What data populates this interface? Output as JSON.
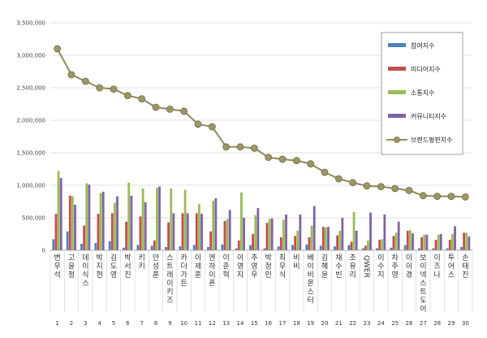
{
  "chart_data": {
    "type": "bar",
    "ylim": [
      0,
      3500000
    ],
    "yticks": [
      0,
      500000,
      1000000,
      1500000,
      2000000,
      2500000,
      3000000,
      3500000
    ],
    "ytick_labels": [
      "0",
      "500,000",
      "1,000,000",
      "1,500,000",
      "2,000,000",
      "2,500,000",
      "3,000,000",
      "3,500,000"
    ],
    "grid": true,
    "legend_position": "top-right",
    "categories": [
      "변우석",
      "고윤정",
      "데이식스",
      "박지현",
      "김도영",
      "박서진",
      "키키",
      "안성훈",
      "스트레이키즈",
      "카더가든",
      "이제훈",
      "엔하이픈",
      "이준혁",
      "이영지",
      "추영우",
      "박정민",
      "최우식",
      "비비",
      "베이비몬스터",
      "김혜윤",
      "채수빈",
      "조유리",
      "QWER",
      "이수지",
      "차주영",
      "이이경",
      "보이넥스트도어",
      "이즈나",
      "투어스",
      "손태진"
    ],
    "rank_labels": [
      "1",
      "2",
      "3",
      "4",
      "5",
      "6",
      "7",
      "8",
      "9",
      "10",
      "11",
      "12",
      "13",
      "14",
      "15",
      "16",
      "17",
      "18",
      "19",
      "20",
      "21",
      "22",
      "23",
      "24",
      "25",
      "26",
      "27",
      "28",
      "29",
      "30"
    ],
    "series": [
      {
        "name": "참여지수",
        "kind": "bar",
        "color": "#4f81bd",
        "values": [
          170000,
          290000,
          100000,
          110000,
          140000,
          40000,
          80000,
          70000,
          50000,
          60000,
          80000,
          50000,
          90000,
          30000,
          80000,
          30000,
          60000,
          80000,
          90000,
          70000,
          60000,
          80000,
          30000,
          30000,
          40000,
          80000,
          30000,
          30000,
          30000,
          50000
        ]
      },
      {
        "name": "미디어지수",
        "kind": "bar",
        "color": "#c0504d",
        "values": [
          560000,
          840000,
          380000,
          560000,
          570000,
          440000,
          520000,
          150000,
          430000,
          570000,
          570000,
          290000,
          450000,
          150000,
          250000,
          420000,
          200000,
          220000,
          200000,
          360000,
          230000,
          130000,
          70000,
          160000,
          220000,
          300000,
          200000,
          160000,
          160000,
          270000
        ]
      },
      {
        "name": "소통지수",
        "kind": "bar",
        "color": "#9bbb59",
        "values": [
          1220000,
          830000,
          1030000,
          880000,
          730000,
          1040000,
          950000,
          960000,
          950000,
          930000,
          710000,
          760000,
          480000,
          890000,
          540000,
          480000,
          470000,
          300000,
          380000,
          350000,
          300000,
          590000,
          150000,
          170000,
          270000,
          310000,
          240000,
          240000,
          250000,
          270000
        ]
      },
      {
        "name": "커뮤니티지수",
        "kind": "bar",
        "color": "#8064a2",
        "values": [
          1110000,
          700000,
          1010000,
          900000,
          830000,
          840000,
          740000,
          980000,
          570000,
          570000,
          560000,
          800000,
          620000,
          500000,
          650000,
          490000,
          550000,
          550000,
          680000,
          360000,
          500000,
          300000,
          580000,
          550000,
          440000,
          260000,
          240000,
          250000,
          370000,
          210000
        ]
      },
      {
        "name": "브랜드평판지수",
        "kind": "line",
        "color": "#8f8a5a",
        "values": [
          3100000,
          2700000,
          2600000,
          2500000,
          2480000,
          2380000,
          2330000,
          2200000,
          2170000,
          2140000,
          1940000,
          1900000,
          1590000,
          1590000,
          1570000,
          1430000,
          1400000,
          1380000,
          1330000,
          1200000,
          1100000,
          1040000,
          990000,
          980000,
          950000,
          920000,
          840000,
          830000,
          830000,
          820000
        ]
      }
    ]
  }
}
